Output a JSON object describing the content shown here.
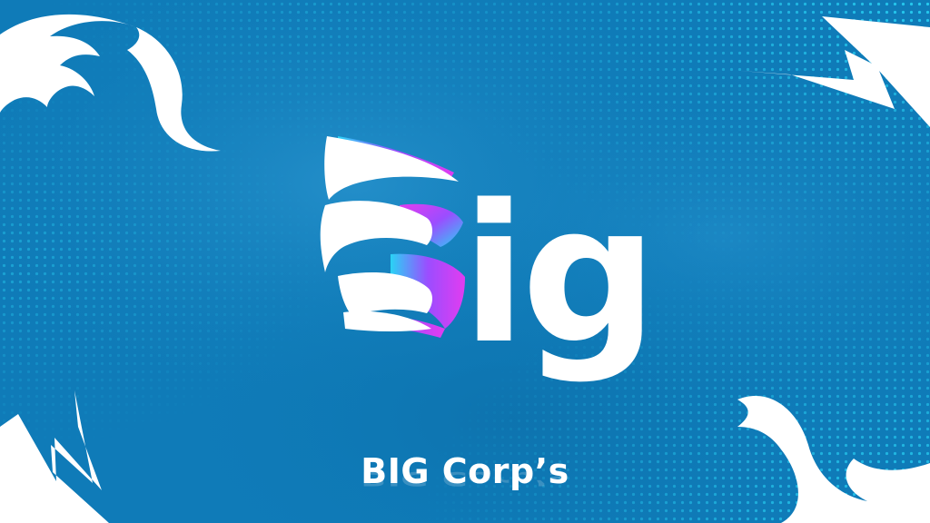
{
  "logo": {
    "letters": "ig",
    "caption": "BIG Corp’s"
  },
  "colors": {
    "background": "#0f7bb8",
    "background_light": "#2a95cf",
    "accent_cyan": "#29d3f5",
    "accent_purple": "#9b4dff",
    "accent_magenta": "#e23cf0",
    "text": "#ffffff"
  },
  "decor": {
    "top_left": "flame-swirl-icon",
    "top_right": "lightning-bolt-icon",
    "bottom_left": "lightning-bolt-icon",
    "bottom_right": "flame-swirl-icon"
  }
}
